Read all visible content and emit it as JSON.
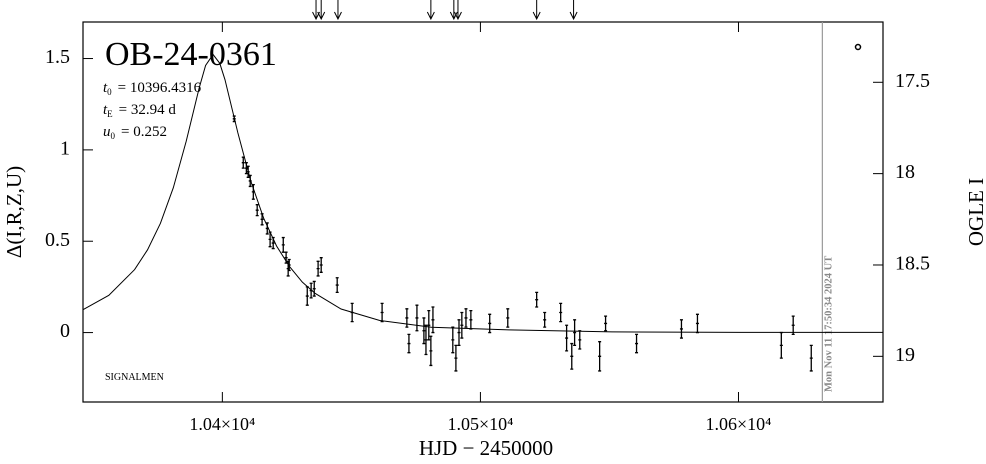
{
  "chart_data": {
    "type": "scatter",
    "title": "OB-24-0361",
    "parameters": [
      {
        "symbol": "t",
        "subscript": "0",
        "text": "= 10396.4316"
      },
      {
        "symbol": "t",
        "subscript": "E",
        "text": "= 32.94 d"
      },
      {
        "symbol": "u",
        "subscript": "0",
        "text": "= 0.252"
      }
    ],
    "annotation": "SIGNALMEN",
    "date_label": "Mon Nov 11 17:50:34 2024 UT",
    "date_line_x": 10632.5,
    "alert_arrows_x": [
      10436.3,
      10438.3,
      10444.8,
      10480.8,
      10489.7,
      10491.3,
      10521.8,
      10536.1
    ],
    "xlabel": "HJD − 2450000",
    "ylabel": "Δ(I,R,Z,U)",
    "y2label": "OGLE I",
    "color": "#000000",
    "x": [
      10404.6,
      10408.1,
      10409.3,
      10410.0,
      10410.8,
      10412.0,
      10413.5,
      10415.4,
      10417.4,
      10418.5,
      10419.7,
      10423.6,
      10424.7,
      10425.5,
      10425.9,
      10432.9,
      10434.4,
      10435.6,
      10437.1,
      10438.3,
      10444.5,
      10450.3,
      10461.9,
      10471.5,
      10472.3,
      10475.4,
      10478.1,
      10478.9,
      10480.0,
      10480.8,
      10481.6,
      10489.3,
      10490.5,
      10491.7,
      10492.8,
      10494.4,
      10496.3,
      10503.6,
      10510.6,
      10521.8,
      10524.9,
      10531.1,
      10533.4,
      10535.4,
      10536.5,
      10538.5,
      10546.2,
      10548.5,
      10560.5,
      10577.9,
      10584.1,
      10616.6,
      10621.2,
      10628.2
    ],
    "values": [
      1.17,
      0.93,
      0.9,
      0.88,
      0.83,
      0.77,
      0.67,
      0.62,
      0.57,
      0.51,
      0.49,
      0.48,
      0.41,
      0.35,
      0.37,
      0.2,
      0.23,
      0.24,
      0.35,
      0.37,
      0.26,
      0.11,
      0.11,
      0.08,
      -0.06,
      0.08,
      0.01,
      -0.04,
      0.04,
      -0.1,
      0.07,
      -0.04,
      -0.14,
      0.0,
      0.04,
      0.08,
      0.07,
      0.05,
      0.08,
      0.18,
      0.07,
      0.11,
      -0.03,
      -0.13,
      0.0,
      -0.04,
      -0.13,
      0.05,
      -0.06,
      0.02,
      0.05,
      -0.07,
      0.04,
      -0.14
    ],
    "errors": [
      0.015,
      0.03,
      0.03,
      0.03,
      0.03,
      0.04,
      0.03,
      0.03,
      0.03,
      0.04,
      0.03,
      0.04,
      0.03,
      0.04,
      0.03,
      0.05,
      0.04,
      0.04,
      0.04,
      0.04,
      0.04,
      0.05,
      0.05,
      0.05,
      0.05,
      0.07,
      0.07,
      0.08,
      0.08,
      0.08,
      0.07,
      0.07,
      0.07,
      0.07,
      0.07,
      0.05,
      0.05,
      0.05,
      0.05,
      0.04,
      0.04,
      0.05,
      0.07,
      0.07,
      0.07,
      0.05,
      0.08,
      0.04,
      0.05,
      0.05,
      0.05,
      0.07,
      0.05,
      0.07
    ],
    "model": {
      "x": [
        10346,
        10356,
        10366,
        10371,
        10376,
        10381,
        10386,
        10391,
        10393.5,
        10396.4,
        10399,
        10401,
        10406,
        10411,
        10416,
        10421,
        10426,
        10431,
        10436,
        10446,
        10461,
        10481,
        10511,
        10551,
        10601,
        10656
      ],
      "values": [
        0.125,
        0.204,
        0.345,
        0.453,
        0.598,
        0.793,
        1.048,
        1.338,
        1.462,
        1.522,
        1.474,
        1.385,
        1.094,
        0.83,
        0.626,
        0.474,
        0.362,
        0.276,
        0.214,
        0.129,
        0.066,
        0.029,
        0.015,
        0.004,
        0.001,
        0.001
      ]
    },
    "xlim": [
      10346,
      10656
    ],
    "ylim": [
      -0.38,
      1.7
    ],
    "y2lim": [
      19.25,
      17.17
    ],
    "xticks": [
      {
        "value": 10400,
        "label": "1.04×10⁴"
      },
      {
        "value": 10500,
        "label": "1.05×10⁴"
      },
      {
        "value": 10600,
        "label": "1.06×10⁴"
      }
    ],
    "yticks": [
      0,
      0.5,
      1,
      1.5
    ],
    "y2ticks": [
      17.5,
      18,
      18.5,
      19
    ]
  }
}
